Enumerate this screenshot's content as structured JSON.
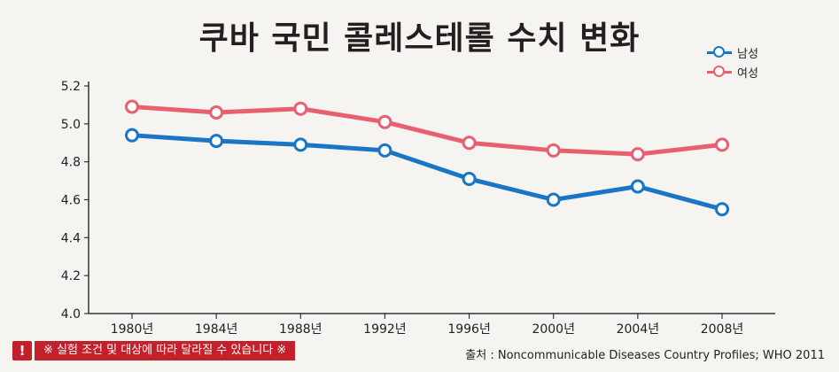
{
  "chart_data": {
    "type": "line",
    "title": "쿠바 국민 콜레스테롤 수치 변화",
    "categories": [
      "1980년",
      "1984년",
      "1988년",
      "1992년",
      "1996년",
      "2000년",
      "2004년",
      "2008년"
    ],
    "series": [
      {
        "name": "남성",
        "color": "#1a75c4",
        "values": [
          4.94,
          4.91,
          4.89,
          4.86,
          4.71,
          4.6,
          4.67,
          4.55
        ]
      },
      {
        "name": "여성",
        "color": "#e8606f",
        "values": [
          5.09,
          5.06,
          5.08,
          5.01,
          4.9,
          4.86,
          4.84,
          4.89
        ]
      }
    ],
    "y_ticks": [
      "4.0",
      "4.2",
      "4.4",
      "4.6",
      "4.8",
      "5.0",
      "5.2"
    ],
    "ylim": [
      4.0,
      5.2
    ],
    "grid": false,
    "legend": "top-right"
  },
  "note": {
    "icon": "!",
    "text": "※ 실험 조건 및 대상에 따라 달라질 수 있습니다 ※"
  },
  "source": "출처 : Noncommunicable Diseases Country Profiles; WHO 2011"
}
